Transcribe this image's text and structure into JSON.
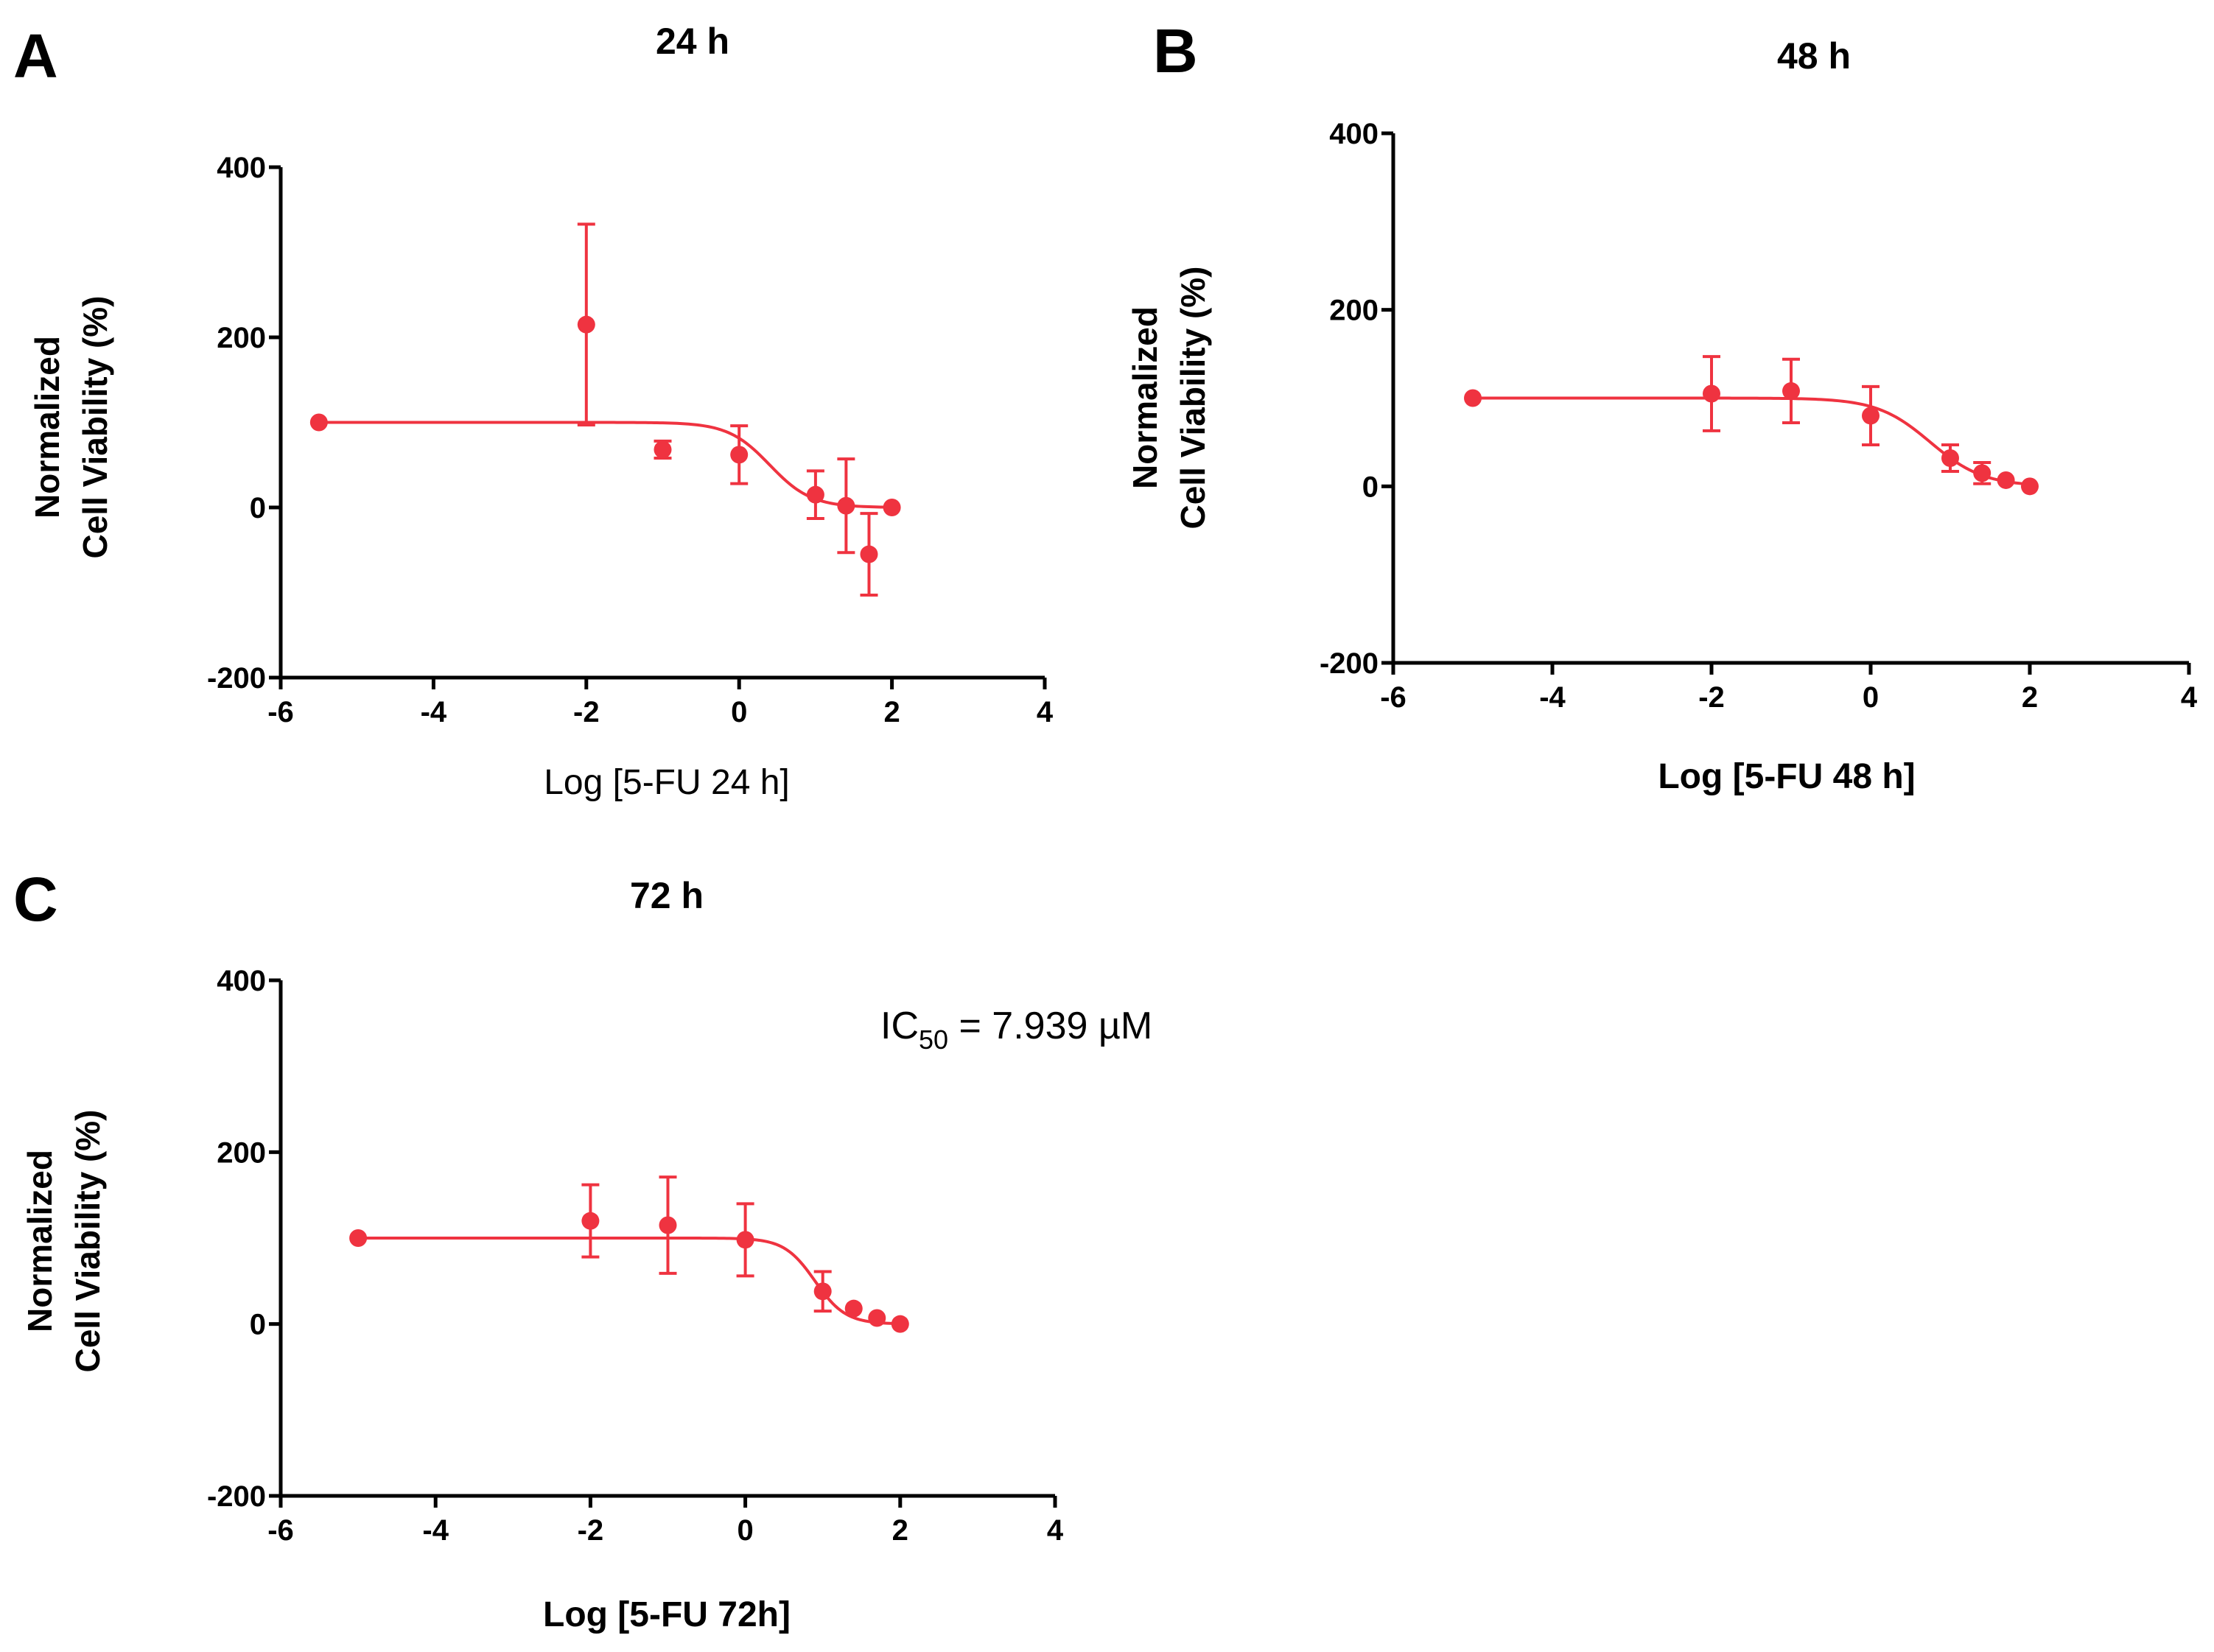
{
  "colors": {
    "series": "#ef3340",
    "axis": "#000000"
  },
  "chart_data": [
    {
      "panel": "A",
      "type": "scatter",
      "title": "24 h",
      "xlabel": "Log [5-FU 24 h]",
      "ylabel_line1": "Normalized",
      "ylabel_line2": "Cell Viability (%)",
      "xlim": [
        -6,
        4
      ],
      "ylim": [
        -200,
        400
      ],
      "xticks": [
        "-6",
        "-4",
        "-2",
        "0",
        "2",
        "4"
      ],
      "yticks": [
        "-200",
        "0",
        "200",
        "400"
      ],
      "points": [
        {
          "x": -5.5,
          "y": 100,
          "err": 0
        },
        {
          "x": -2,
          "y": 215,
          "err": 118
        },
        {
          "x": -1,
          "y": 68,
          "err": 10
        },
        {
          "x": 0,
          "y": 62,
          "err": 34
        },
        {
          "x": 1,
          "y": 15,
          "err": 28
        },
        {
          "x": 1.4,
          "y": 2,
          "err": 55
        },
        {
          "x": 1.7,
          "y": -55,
          "err": 48
        },
        {
          "x": 2,
          "y": 0,
          "err": 0
        }
      ],
      "fit": {
        "top": 100,
        "bottom": 0,
        "logIC50": 0.4,
        "hill": 1.6,
        "x_start": -5.5,
        "x_end": 2
      }
    },
    {
      "panel": "B",
      "type": "scatter",
      "title": "48 h",
      "xlabel": "Log [5-FU 48 h]",
      "ylabel_line1": "Normalized",
      "ylabel_line2": "Cell Viability (%)",
      "xlim": [
        -6,
        4
      ],
      "ylim": [
        -200,
        400
      ],
      "xticks": [
        "-6",
        "-4",
        "-2",
        "0",
        "2",
        "4"
      ],
      "yticks": [
        "-200",
        "0",
        "200",
        "400"
      ],
      "points": [
        {
          "x": -5,
          "y": 100,
          "err": 0
        },
        {
          "x": -2,
          "y": 105,
          "err": 42
        },
        {
          "x": -1,
          "y": 108,
          "err": 36
        },
        {
          "x": 0,
          "y": 80,
          "err": 33
        },
        {
          "x": 1,
          "y": 32,
          "err": 15
        },
        {
          "x": 1.4,
          "y": 15,
          "err": 12
        },
        {
          "x": 1.7,
          "y": 7,
          "err": 0
        },
        {
          "x": 2,
          "y": 0,
          "err": 0
        }
      ],
      "fit": {
        "top": 100,
        "bottom": 0,
        "logIC50": 0.75,
        "hill": 1.3,
        "x_start": -5,
        "x_end": 2
      }
    },
    {
      "panel": "C",
      "type": "scatter",
      "title": "72 h",
      "xlabel": "Log [5-FU 72h]",
      "ylabel_line1": "Normalized",
      "ylabel_line2": "Cell Viability (%)",
      "xlim": [
        -6,
        4
      ],
      "ylim": [
        -200,
        400
      ],
      "xticks": [
        "-6",
        "-4",
        "-2",
        "0",
        "2",
        "4"
      ],
      "yticks": [
        "-200",
        "0",
        "200",
        "400"
      ],
      "annotation_main": "IC",
      "annotation_sub": "50",
      "annotation_rest": " = 7.939 µM",
      "points": [
        {
          "x": -5,
          "y": 100,
          "err": 0
        },
        {
          "x": -2,
          "y": 120,
          "err": 42
        },
        {
          "x": -1,
          "y": 115,
          "err": 56
        },
        {
          "x": 0,
          "y": 98,
          "err": 42
        },
        {
          "x": 1,
          "y": 38,
          "err": 23
        },
        {
          "x": 1.4,
          "y": 18,
          "err": 0
        },
        {
          "x": 1.7,
          "y": 7,
          "err": 0
        },
        {
          "x": 2,
          "y": 0,
          "err": 0
        }
      ],
      "fit": {
        "top": 100,
        "bottom": 0,
        "logIC50": 0.9,
        "hill": 2.2,
        "x_start": -5,
        "x_end": 2
      }
    }
  ]
}
